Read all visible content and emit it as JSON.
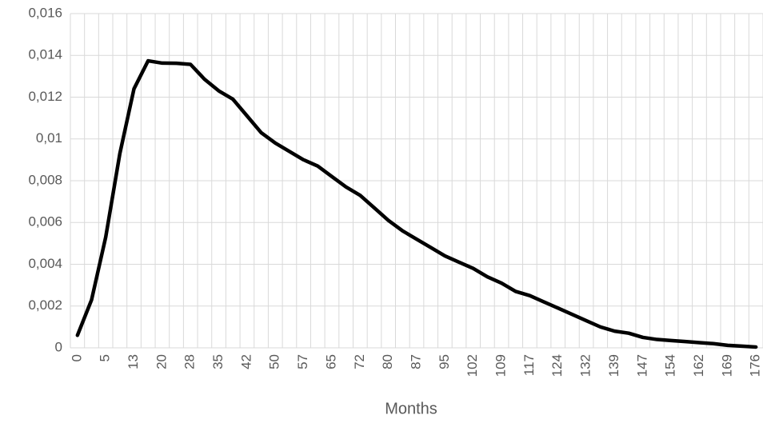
{
  "chart_data": {
    "type": "line",
    "x_label": "Months",
    "categories": [
      "0",
      null,
      "5",
      null,
      "13",
      null,
      "20",
      null,
      "28",
      null,
      "35",
      null,
      "42",
      null,
      "50",
      null,
      "57",
      null,
      "65",
      null,
      "72",
      null,
      "80",
      null,
      "87",
      null,
      "95",
      null,
      "102",
      null,
      "109",
      null,
      "117",
      null,
      "124",
      null,
      "132",
      null,
      "139",
      null,
      "147",
      null,
      "154",
      null,
      "162",
      null,
      "169",
      null,
      "176"
    ],
    "values": [
      0.0006,
      0.0023,
      0.0053,
      0.0093,
      0.0124,
      0.01374,
      0.01363,
      0.01362,
      0.01357,
      0.01285,
      0.0123,
      0.0119,
      0.0111,
      0.0103,
      0.0098,
      0.0094,
      0.009,
      0.0087,
      0.0082,
      0.0077,
      0.0073,
      0.0067,
      0.0061,
      0.0056,
      0.0052,
      0.0048,
      0.0044,
      0.0041,
      0.0038,
      0.0034,
      0.0031,
      0.0027,
      0.0025,
      0.0022,
      0.0019,
      0.0016,
      0.0013,
      0.001,
      0.0008,
      0.0007,
      0.0005,
      0.0004,
      0.00035,
      0.0003,
      0.00025,
      0.0002,
      0.00012,
      8e-05,
      4e-05
    ],
    "color": "#000000",
    "ylim": [
      0,
      0.016
    ],
    "yticks": [
      0,
      {
        "value": 0.002,
        "label": "0,002"
      },
      {
        "value": 0.004,
        "label": "0,004"
      },
      {
        "value": 0.006,
        "label": "0,006"
      },
      {
        "value": 0.008,
        "label": "0,008"
      },
      {
        "value": 0.01,
        "label": "0,01"
      },
      {
        "value": 0.012,
        "label": "0,012"
      },
      {
        "value": 0.014,
        "label": "0,014"
      },
      {
        "value": 0.016,
        "label": "0,016"
      }
    ],
    "grid": true
  }
}
